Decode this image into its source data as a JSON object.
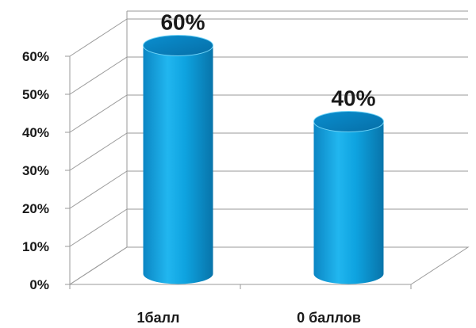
{
  "chart_data": {
    "type": "bar",
    "style": "3d-cylinder",
    "categories": [
      "1балл",
      "0 баллов"
    ],
    "values": [
      60,
      40
    ],
    "data_labels": [
      "60%",
      "40%"
    ],
    "y_ticks": [
      "0%",
      "10%",
      "20%",
      "30%",
      "40%",
      "50%",
      "60%"
    ],
    "ylim": [
      0,
      60
    ],
    "grid": true,
    "legend": "none",
    "colors": {
      "bar": "#0ea3e0",
      "bar_dark": "#0874aa",
      "bar_light": "#6fd3f7",
      "grid": "#9a9a9a"
    }
  }
}
